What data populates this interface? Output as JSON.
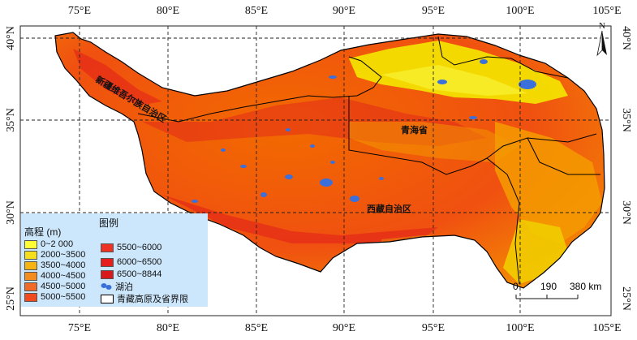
{
  "map": {
    "x_ticks": [
      "75°E",
      "80°E",
      "85°E",
      "90°E",
      "95°E",
      "100°E",
      "105°E"
    ],
    "y_ticks": [
      "40°N",
      "35°N",
      "30°N",
      "25°N"
    ],
    "provinces": {
      "xinjiang": "新疆维吾尔族自治区",
      "qinghai": "青海省",
      "xizang": "西藏自治区"
    },
    "north_label": "N",
    "colors": {
      "lowest": "#f5e900",
      "low": "#f1cc00",
      "mid": "#f49b00",
      "high": "#f26a00",
      "higher": "#ee3d0c",
      "highest": "#e01e1e",
      "lake": "#3a6fdc",
      "boundary": "#000000"
    }
  },
  "legend": {
    "elevation_title": "高程 (m)",
    "legend_title": "图例",
    "classes": [
      {
        "label": "0~2 000",
        "color": "#ffff33"
      },
      {
        "label": "2000~3500",
        "color": "#f5de1c"
      },
      {
        "label": "3500~4000",
        "color": "#f5b414"
      },
      {
        "label": "4000~4500",
        "color": "#f58c1e"
      },
      {
        "label": "4500~5000",
        "color": "#f26a28"
      },
      {
        "label": "5000~5500",
        "color": "#f04a1e"
      },
      {
        "label": "5500~6000",
        "color": "#ee3324"
      },
      {
        "label": "6000~6500",
        "color": "#e61e1e"
      },
      {
        "label": "6500~8844",
        "color": "#d7191c"
      }
    ],
    "lake_label": "湖泊",
    "boundary_label": "青藏高原及省界限"
  },
  "scale": {
    "ticks": [
      "0",
      "190",
      "380 km"
    ]
  }
}
